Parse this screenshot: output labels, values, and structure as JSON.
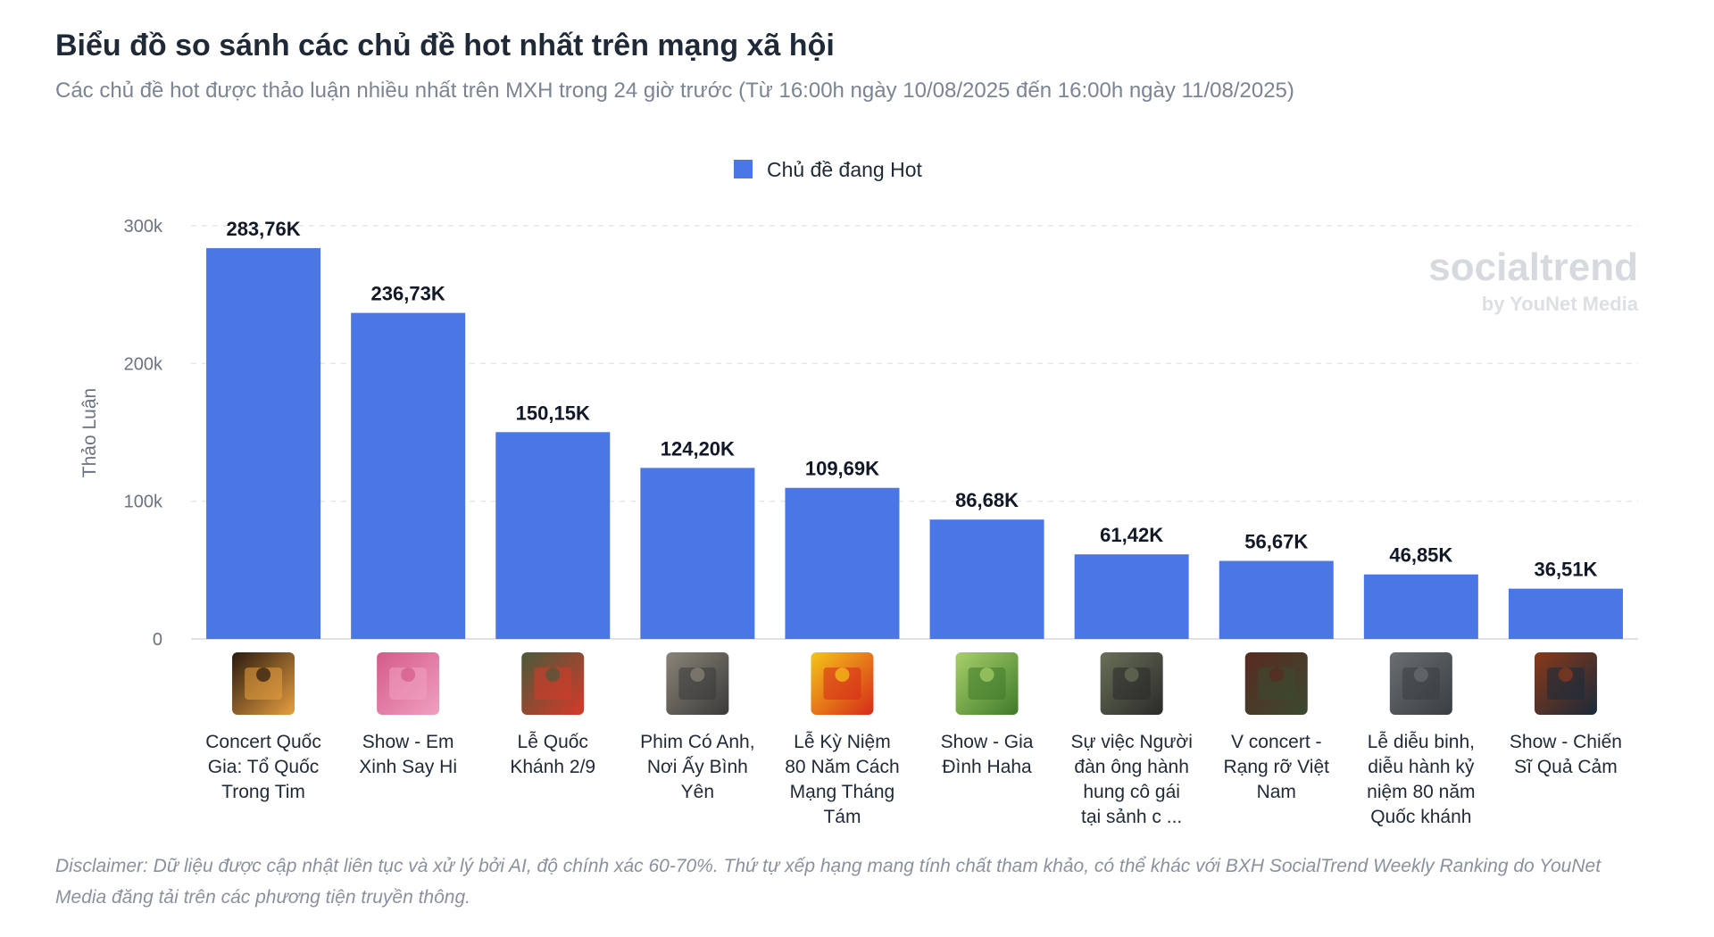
{
  "header": {
    "title": "Biểu đồ so sánh các chủ đề hot nhất trên mạng xã hội",
    "subtitle": "Các chủ đề hot được thảo luận nhiều nhất trên MXH trong 24 giờ trước (Từ 16:00h ngày 10/08/2025 đến 16:00h ngày 11/08/2025)"
  },
  "watermark": {
    "brand": "socialtrend",
    "by": "by YouNet Media"
  },
  "disclaimer": "Disclaimer: Dữ liệu được cập nhật liên tục và xử lý bởi AI, độ chính xác 60-70%. Thứ tự xếp hạng mang tính chất tham khảo, có thể khác với BXH SocialTrend Weekly Ranking do YouNet Media đăng tải trên các phương tiện truyền thông.",
  "colors": {
    "bar": "#4a76e6",
    "grid": "#e3e6ea"
  },
  "chart_data": {
    "type": "bar",
    "title": "Biểu đồ so sánh các chủ đề hot nhất trên mạng xã hội",
    "xlabel": "",
    "ylabel": "Thảo Luận",
    "ylim": [
      0,
      300000
    ],
    "yticks": [
      {
        "value": 0,
        "label": "0"
      },
      {
        "value": 100000,
        "label": "100k"
      },
      {
        "value": 200000,
        "label": "200k"
      },
      {
        "value": 300000,
        "label": "300k"
      }
    ],
    "grid": true,
    "legend_position": "top-center",
    "series": [
      {
        "name": "Chủ đề đang Hot",
        "color": "#4a76e6",
        "values": [
          283760,
          236730,
          150150,
          124200,
          109690,
          86680,
          61420,
          56670,
          46850,
          36510
        ],
        "value_labels": [
          "283,76K",
          "236,73K",
          "150,15K",
          "124,20K",
          "109,69K",
          "86,68K",
          "61,42K",
          "56,67K",
          "46,85K",
          "36,51K"
        ]
      }
    ],
    "categories": [
      [
        "Concert Quốc",
        "Gia: Tổ Quốc",
        "Trong Tim"
      ],
      [
        "Show - Em",
        "Xinh Say Hi"
      ],
      [
        "Lễ Quốc",
        "Khánh 2/9"
      ],
      [
        "Phim Có Anh,",
        "Nơi Ấy Bình",
        "Yên"
      ],
      [
        "Lễ Kỳ Niệm",
        "80 Năm Cách",
        "Mạng Tháng",
        "Tám"
      ],
      [
        "Show - Gia",
        "Đình Haha"
      ],
      [
        "Sự việc Người",
        "đàn ông hành",
        "hung cô gái",
        "tại sảnh c ..."
      ],
      [
        "V concert -",
        "Rạng rỡ Việt",
        "Nam"
      ],
      [
        "Lễ diễu binh,",
        "diễu hành kỷ",
        "niệm 80 năm",
        "Quốc khánh"
      ],
      [
        "Show - Chiến",
        "Sĩ Quả Cảm"
      ]
    ],
    "thumbnails": [
      {
        "icon": "concert-v-logo",
        "colors": [
          "#2a1a10",
          "#e8a040"
        ]
      },
      {
        "icon": "em-xinh-logo",
        "colors": [
          "#d45a8a",
          "#f0a0c0"
        ]
      },
      {
        "icon": "flag-soldiers",
        "colors": [
          "#4a5a3a",
          "#d63a2a"
        ]
      },
      {
        "icon": "movie-portrait",
        "colors": [
          "#8a8478",
          "#3a3a3a"
        ]
      },
      {
        "icon": "anniversary-emblem",
        "colors": [
          "#f5c518",
          "#d62a1a"
        ]
      },
      {
        "icon": "gia-dinh-haha-logo",
        "colors": [
          "#a8d06a",
          "#3f7a2a"
        ]
      },
      {
        "icon": "man-portrait",
        "colors": [
          "#6a7058",
          "#2a2a2a"
        ]
      },
      {
        "icon": "soldiers-concert",
        "colors": [
          "#5a2a20",
          "#3a4a30"
        ]
      },
      {
        "icon": "parade-tanks",
        "colors": [
          "#6a6e72",
          "#3a3e42"
        ]
      },
      {
        "icon": "chien-si-poster",
        "colors": [
          "#8a3a1a",
          "#1a2a3a"
        ]
      }
    ]
  }
}
